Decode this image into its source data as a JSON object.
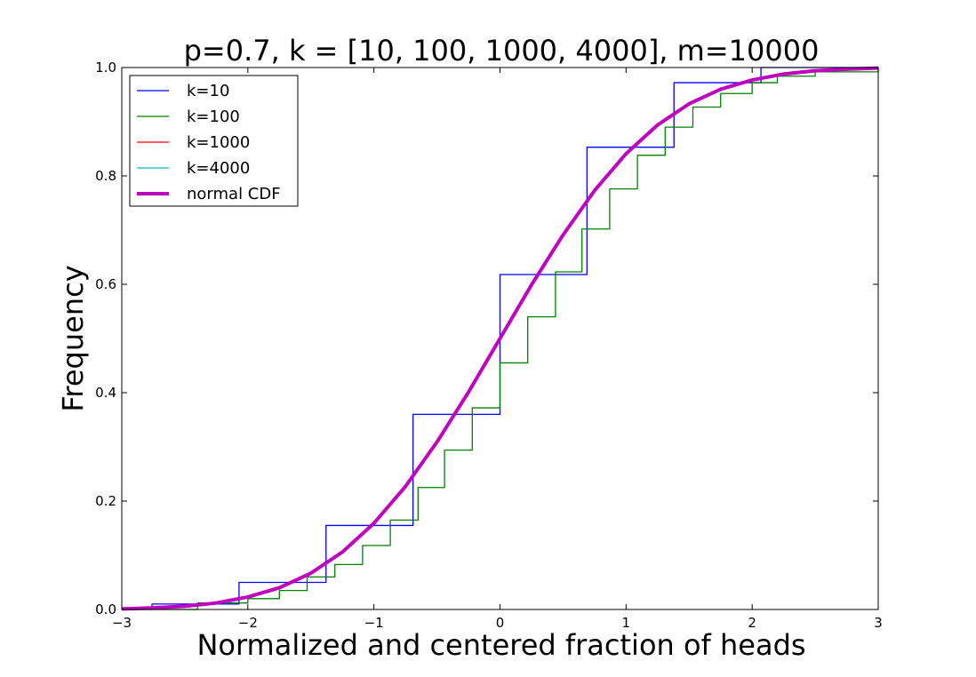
{
  "chart_data": {
    "type": "line",
    "title": "p=0.7, k = [10, 100, 1000, 4000], m=10000",
    "xlabel": "Normalized and centered fraction of heads",
    "ylabel": "Frequency",
    "xlim": [
      -3,
      3
    ],
    "ylim": [
      0,
      1
    ],
    "xticks": [
      -3,
      -2,
      -1,
      0,
      1,
      2,
      3
    ],
    "xtick_labels": [
      "−3",
      "−2",
      "−1",
      "0",
      "1",
      "2",
      "3"
    ],
    "yticks": [
      0,
      0.2,
      0.4,
      0.6,
      0.8,
      1.0
    ],
    "ytick_labels": [
      "0.0",
      "0.2",
      "0.4",
      "0.6",
      "0.8",
      "1.0"
    ],
    "grid": false,
    "legend_position": "top-left",
    "series": [
      {
        "name": "k=10",
        "style": "step",
        "color": "#0000ff",
        "x": [
          -3.0,
          -2.76,
          -2.07,
          -1.38,
          -0.69,
          0.0,
          0.69,
          1.38,
          2.07,
          3.0
        ],
        "values": [
          0.0,
          0.01,
          0.05,
          0.155,
          0.36,
          0.618,
          0.853,
          0.972,
          1.0,
          1.0
        ]
      },
      {
        "name": "k=100",
        "style": "step",
        "color": "#008000",
        "x": [
          -3.0,
          -2.4,
          -2.0,
          -1.75,
          -1.53,
          -1.31,
          -1.09,
          -0.87,
          -0.65,
          -0.44,
          -0.22,
          0.0,
          0.22,
          0.44,
          0.65,
          0.87,
          1.09,
          1.31,
          1.53,
          1.75,
          2.0,
          2.2,
          2.5,
          3.0
        ],
        "values": [
          0.0,
          0.012,
          0.02,
          0.035,
          0.06,
          0.083,
          0.118,
          0.165,
          0.225,
          0.294,
          0.372,
          0.455,
          0.54,
          0.623,
          0.702,
          0.776,
          0.838,
          0.89,
          0.927,
          0.952,
          0.972,
          0.984,
          0.992,
          1.0
        ]
      },
      {
        "name": "k=1000",
        "style": "line",
        "color": "#ff0000",
        "x": [
          -3,
          -2.75,
          -2.5,
          -2.25,
          -2,
          -1.75,
          -1.5,
          -1.25,
          -1,
          -0.75,
          -0.5,
          -0.25,
          0,
          0.25,
          0.5,
          0.75,
          1,
          1.25,
          1.5,
          1.75,
          2,
          2.25,
          2.5,
          2.75,
          3
        ],
        "values": [
          0.001,
          0.003,
          0.006,
          0.012,
          0.023,
          0.04,
          0.067,
          0.106,
          0.159,
          0.227,
          0.309,
          0.401,
          0.5,
          0.599,
          0.691,
          0.773,
          0.841,
          0.894,
          0.933,
          0.96,
          0.977,
          0.988,
          0.994,
          0.997,
          0.999
        ]
      },
      {
        "name": "k=4000",
        "style": "line",
        "color": "#00bfbf",
        "x": [
          -3,
          -2.75,
          -2.5,
          -2.25,
          -2,
          -1.75,
          -1.5,
          -1.25,
          -1,
          -0.75,
          -0.5,
          -0.25,
          0,
          0.25,
          0.5,
          0.75,
          1,
          1.25,
          1.5,
          1.75,
          2,
          2.25,
          2.5,
          2.75,
          3
        ],
        "values": [
          0.001,
          0.003,
          0.006,
          0.012,
          0.023,
          0.04,
          0.067,
          0.106,
          0.159,
          0.227,
          0.309,
          0.401,
          0.5,
          0.599,
          0.691,
          0.773,
          0.841,
          0.894,
          0.933,
          0.96,
          0.977,
          0.988,
          0.994,
          0.997,
          0.999
        ]
      },
      {
        "name": "normal CDF",
        "style": "line",
        "color": "#bf00bf",
        "x": [
          -3,
          -2.75,
          -2.5,
          -2.25,
          -2,
          -1.75,
          -1.5,
          -1.25,
          -1,
          -0.75,
          -0.5,
          -0.25,
          0,
          0.25,
          0.5,
          0.75,
          1,
          1.25,
          1.5,
          1.75,
          2,
          2.25,
          2.5,
          2.75,
          3
        ],
        "values": [
          0.001,
          0.003,
          0.006,
          0.012,
          0.023,
          0.04,
          0.067,
          0.106,
          0.159,
          0.227,
          0.309,
          0.401,
          0.5,
          0.599,
          0.691,
          0.773,
          0.841,
          0.894,
          0.933,
          0.96,
          0.977,
          0.988,
          0.994,
          0.997,
          0.999
        ]
      }
    ]
  }
}
